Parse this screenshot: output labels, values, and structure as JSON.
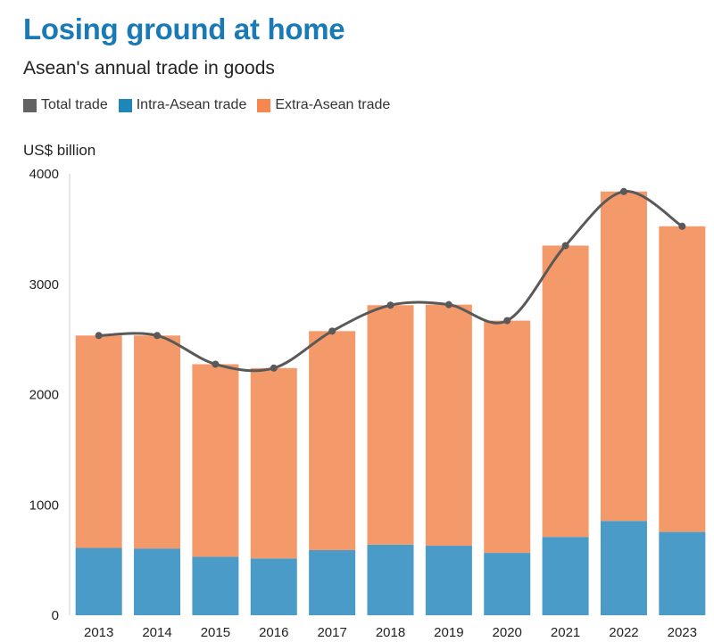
{
  "header": {
    "title": "Losing ground at home",
    "subtitle": "Asean's annual trade in goods"
  },
  "legend": [
    {
      "label": "Total trade",
      "color": "#636363"
    },
    {
      "label": "Intra-Asean trade",
      "color": "#1f86b9"
    },
    {
      "label": "Extra-Asean trade",
      "color": "#f6884f"
    }
  ],
  "chart_data": {
    "type": "bar",
    "stacked": true,
    "ylabel": "US$ billion",
    "ylim": [
      0,
      4000
    ],
    "yticks": [
      0,
      1000,
      2000,
      3000,
      4000
    ],
    "categories": [
      "2013",
      "2014",
      "2015",
      "2016",
      "2017",
      "2018",
      "2019",
      "2020",
      "2021",
      "2022",
      "2023"
    ],
    "series": [
      {
        "name": "Intra-Asean trade",
        "color": "#4a9bc7",
        "values": [
          610,
          605,
          530,
          515,
          590,
          640,
          630,
          565,
          710,
          855,
          755
        ]
      },
      {
        "name": "Extra-Asean trade",
        "color": "#f4996a",
        "values": [
          1925,
          1930,
          1745,
          1725,
          1985,
          2170,
          2185,
          2105,
          2640,
          2985,
          2770
        ]
      },
      {
        "name": "Total trade",
        "type": "line",
        "color": "#595959",
        "values": [
          2535,
          2535,
          2275,
          2240,
          2575,
          2810,
          2815,
          2670,
          3350,
          3840,
          3525
        ]
      }
    ]
  }
}
